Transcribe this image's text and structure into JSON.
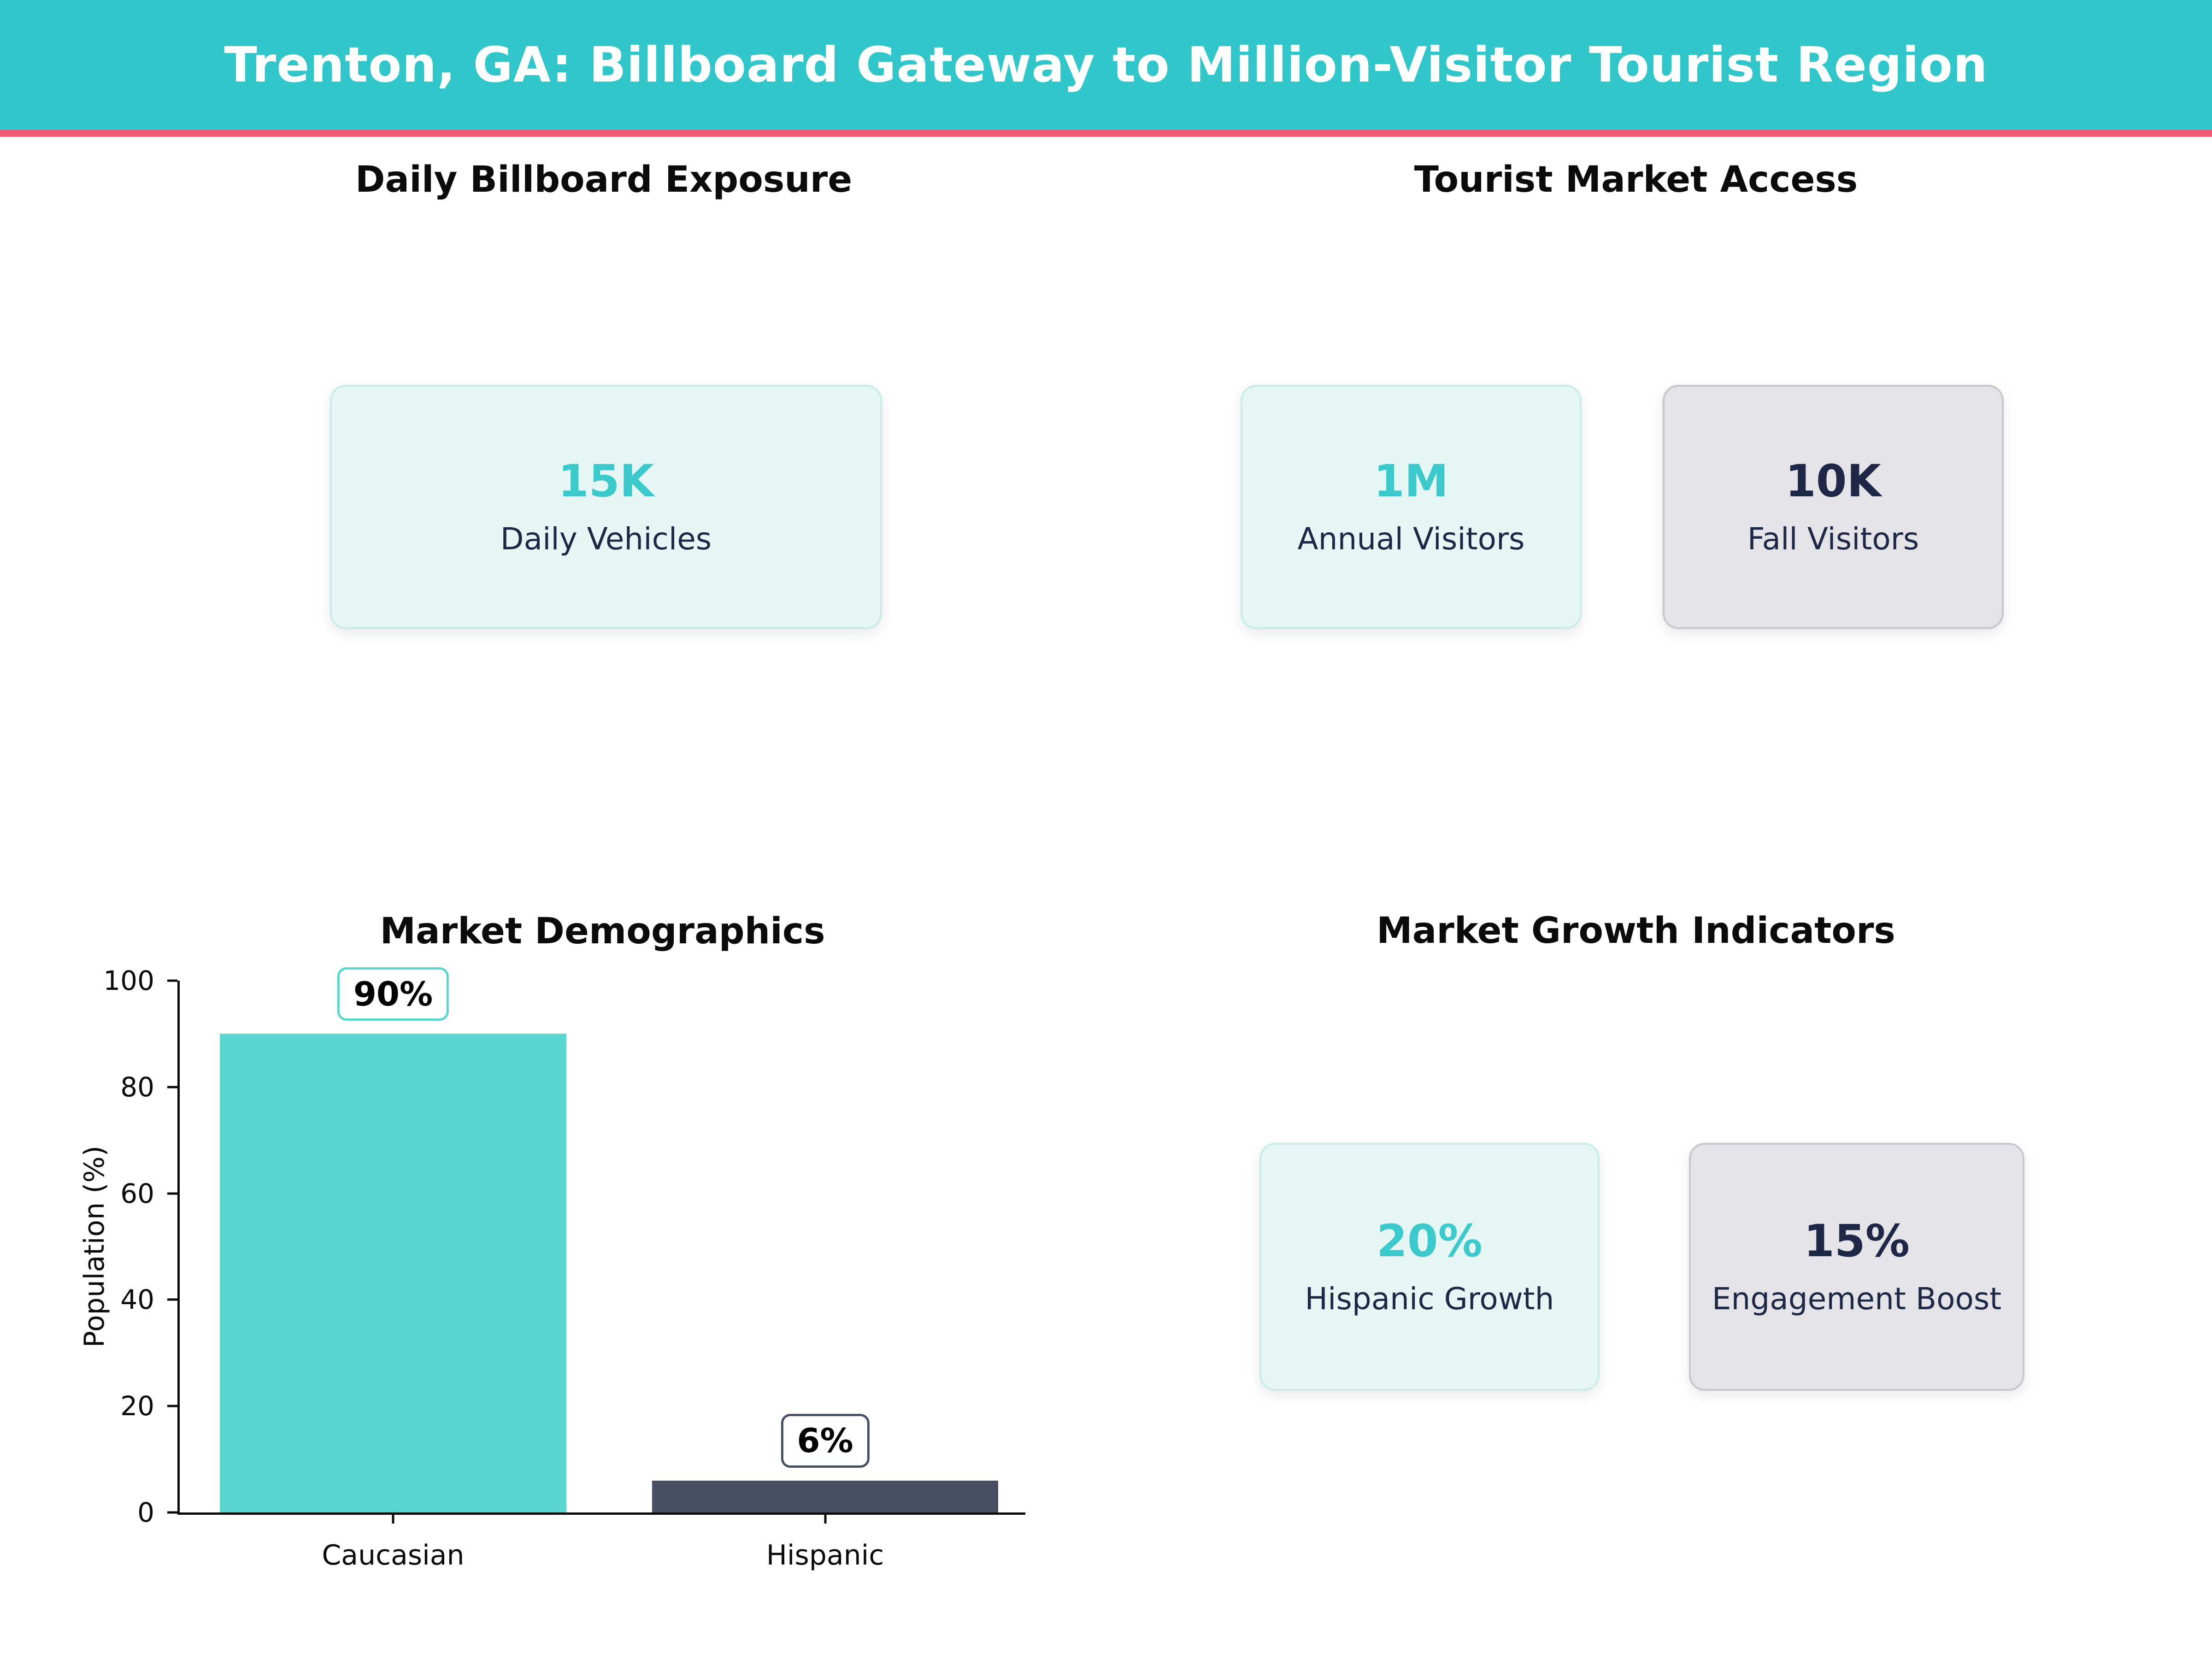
{
  "header": {
    "title": "Trenton, GA: Billboard Gateway to Million-Visitor Tourist Region"
  },
  "colors": {
    "teal-header": "#31C6C9",
    "pink": "#EF5B74",
    "teal-accent": "#3CC9CC",
    "navy": "#1E2846",
    "mint-bg": "#E6F6F4",
    "mint-border": "#C9ECE9",
    "gray-bg": "#E3E3E8",
    "gray-border": "#C7C7CF"
  },
  "sections": {
    "billboard": {
      "title": "Daily Billboard Exposure",
      "cards": [
        {
          "value": "15K",
          "label": "Daily Vehicles",
          "variant": "mint"
        }
      ]
    },
    "tourist": {
      "title": "Tourist Market Access",
      "cards": [
        {
          "value": "1M",
          "label": "Annual Visitors",
          "variant": "mint"
        },
        {
          "value": "10K",
          "label": "Fall Visitors",
          "variant": "gray"
        }
      ]
    },
    "growth": {
      "title": "Market Growth Indicators",
      "cards": [
        {
          "value": "20%",
          "label": "Hispanic Growth",
          "variant": "mint"
        },
        {
          "value": "15%",
          "label": "Engagement Boost",
          "variant": "gray"
        }
      ]
    }
  },
  "chart_data": {
    "type": "bar",
    "title": "Market Demographics",
    "categories": [
      "Caucasian",
      "Hispanic"
    ],
    "values": [
      90,
      6
    ],
    "data_labels": [
      "90%",
      "6%"
    ],
    "bar_colors": [
      "#5BD5D0",
      "#474E63"
    ],
    "label_box_border_colors": [
      "#5BD5D0",
      "#474E63"
    ],
    "xlabel": "",
    "ylabel": "Population (%)",
    "ylim": [
      0,
      100
    ],
    "yticks": [
      0,
      20,
      40,
      60,
      80,
      100
    ],
    "grid": false,
    "legend_position": "none"
  }
}
